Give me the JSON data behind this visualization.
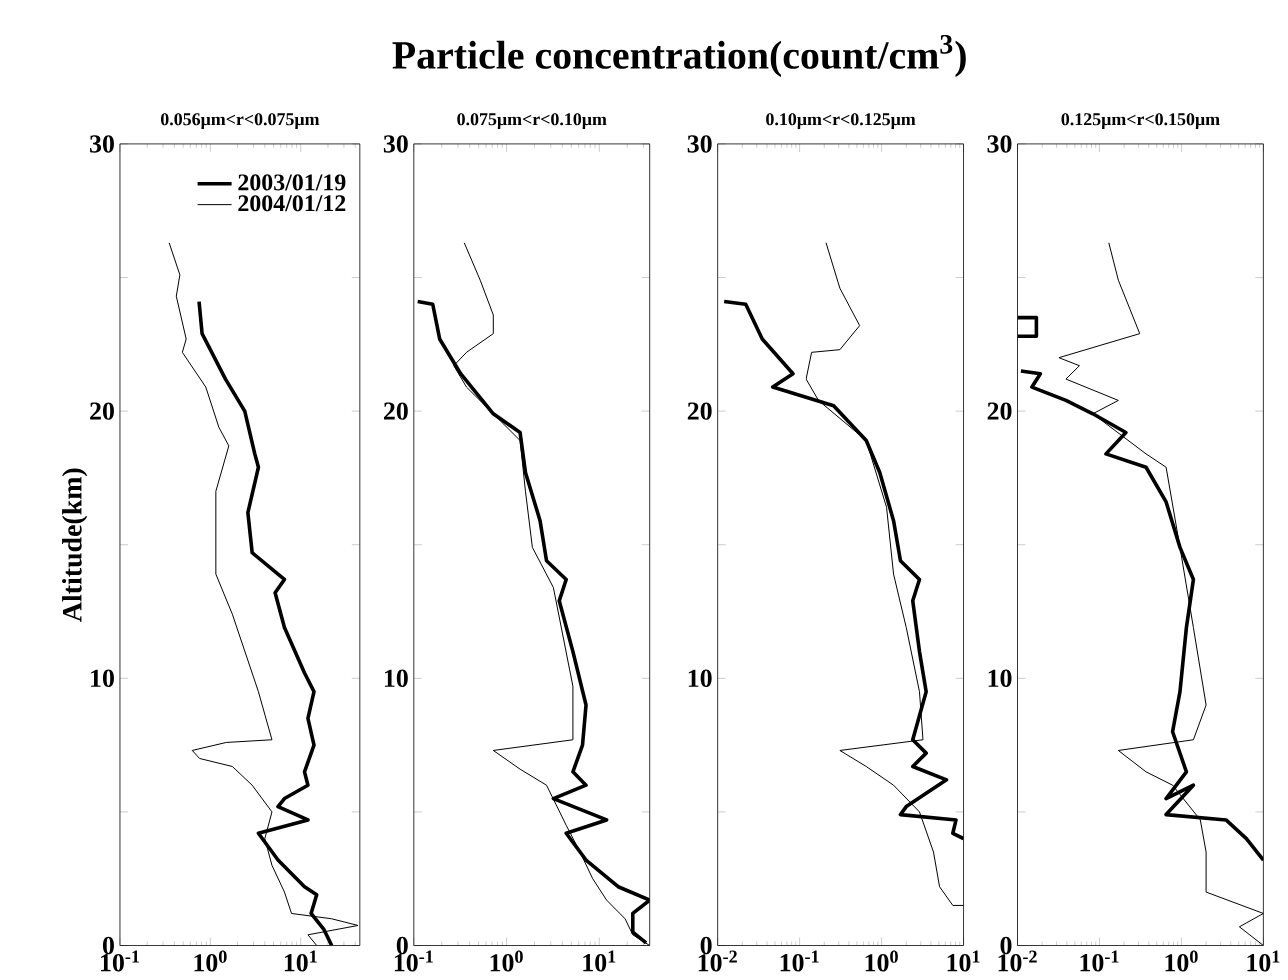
{
  "chart_data": [
    {
      "type": "line",
      "title": "0.056μm<r<0.075μm",
      "ylabel": "Altitude(km)",
      "annotations": [
        "Particle concentration(count/cm$^{3}$)"
      ],
      "log": "x",
      "legend": "top right",
      "xlim": [
        0.1,
        45
      ],
      "xticks": [
        {
          "value": 0.1,
          "label": "10$^{-1}$"
        },
        {
          "value": 1,
          "label": "10$^{0}$"
        },
        {
          "value": 10,
          "label": "10$^{1}$"
        }
      ],
      "ylim": [
        0,
        30
      ],
      "yticks": [
        0,
        {
          "value": 5,
          "label": null
        },
        10,
        {
          "value": 15,
          "label": null
        },
        20,
        {
          "value": 25,
          "label": null
        },
        30
      ],
      "series": [
        {
          "name": "2003/01/19",
          "color": "#000000",
          "x": [
            0.75,
            0.81,
            1.47,
            2.4,
            3.1,
            3.4,
            2.6,
            2.9,
            5.6,
            6.6,
            5.2,
            6.6,
            11,
            14,
            12,
            14,
            11,
            12,
            6.6,
            5.6,
            12,
            3.4,
            5.6,
            11,
            15,
            13,
            18,
            22
          ],
          "values": [
            24.1,
            22.9,
            21.2,
            20.0,
            18.4,
            17.9,
            16.2,
            14.7,
            13.9,
            13.7,
            13.2,
            11.9,
            10.2,
            9.5,
            8.5,
            7.5,
            6.5,
            6.0,
            5.5,
            5.2,
            4.7,
            4.2,
            3.2,
            2.2,
            1.9,
            1.2,
            0.6,
            0
          ]
        },
        {
          "name": "2004/01/12",
          "color": "#000000",
          "x": [
            0.35,
            0.46,
            0.42,
            0.54,
            0.49,
            0.89,
            1.24,
            1.6,
            1.15,
            1.15,
            1.75,
            3.4,
            4.8,
            1.5,
            0.63,
            0.76,
            1.75,
            2.9,
            4.8,
            4.0,
            4.8,
            6.6,
            7.9,
            22,
            43,
            12,
            15
          ],
          "values": [
            26.3,
            25.1,
            24.3,
            22.7,
            22.2,
            20.9,
            19.4,
            18.7,
            17.0,
            13.9,
            12.4,
            9.5,
            7.7,
            7.6,
            7.3,
            7.0,
            6.7,
            6.0,
            5.0,
            4.0,
            3.0,
            2.0,
            1.2,
            1.0,
            0.75,
            0.4,
            0
          ]
        }
      ]
    },
    {
      "type": "line",
      "title": "0.075μm<r<0.10μm",
      "log": "x",
      "xlim": [
        0.1,
        35
      ],
      "xticks": [
        {
          "value": 0.1,
          "label": "10$^{-1}$"
        },
        {
          "value": 1,
          "label": "10$^{0}$"
        },
        {
          "value": 10,
          "label": "10$^{1}$"
        }
      ],
      "ylim": [
        0,
        30
      ],
      "yticks": [
        0,
        {
          "value": 5,
          "label": null
        },
        10,
        {
          "value": 15,
          "label": null
        },
        20,
        {
          "value": 25,
          "label": null
        },
        30
      ],
      "series": [
        {
          "color": "#000000",
          "x": [
            0.11,
            0.16,
            0.19,
            0.32,
            0.72,
            1.4,
            1.6,
            2.3,
            2.7,
            4.4,
            3.7,
            5.2,
            7.2,
            6.6,
            5.2,
            7.2,
            3.2,
            12,
            4.4,
            7.2,
            16,
            35,
            23,
            23,
            32
          ],
          "values": [
            24.1,
            24.0,
            22.7,
            21.4,
            19.9,
            19.2,
            17.7,
            15.9,
            14.4,
            13.7,
            12.9,
            11.0,
            9.0,
            7.5,
            6.5,
            6.0,
            5.5,
            4.7,
            4.2,
            3.2,
            2.2,
            1.7,
            1.2,
            0.5,
            0.1
          ]
        },
        {
          "color": "#000000",
          "x": [
            0.35,
            0.52,
            0.72,
            0.72,
            0.37,
            0.27,
            0.37,
            1.4,
            1.6,
            1.9,
            3.2,
            5.2,
            5.2,
            0.72,
            1.4,
            2.7,
            4.4,
            6.2,
            8.5,
            12,
            19,
            23,
            35
          ],
          "values": [
            26.3,
            24.9,
            23.6,
            22.9,
            22.2,
            21.7,
            20.9,
            18.9,
            17.0,
            14.9,
            13.4,
            9.7,
            7.7,
            7.3,
            6.6,
            6.0,
            4.5,
            3.5,
            2.5,
            1.7,
            1.0,
            0.4,
            0
          ]
        }
      ]
    },
    {
      "type": "line",
      "title": "0.10μm<r<0.125μm",
      "log": "x",
      "xlim": [
        0.01,
        10
      ],
      "xticks": [
        {
          "value": 0.01,
          "label": "10$^{-2}$"
        },
        {
          "value": 0.1,
          "label": "10$^{-1}$"
        },
        {
          "value": 1,
          "label": "10$^{0}$"
        },
        {
          "value": 10,
          "label": "10$^{1}$"
        }
      ],
      "ylim": [
        0,
        30
      ],
      "yticks": [
        0,
        {
          "value": 5,
          "label": null
        },
        10,
        {
          "value": 15,
          "label": null
        },
        20,
        {
          "value": 25,
          "label": null
        },
        30
      ],
      "series": [
        {
          "color": "#000000",
          "x": [
            0.012,
            0.022,
            0.035,
            0.083,
            0.047,
            0.26,
            0.65,
            0.95,
            1.4,
            1.7,
            2.9,
            2.4,
            2.9,
            3.5,
            2.4,
            3.5,
            2.4,
            6.2,
            2.0,
            1.7,
            8.1,
            7.4,
            10
          ],
          "values": [
            24.1,
            24.0,
            22.7,
            21.4,
            20.9,
            20.2,
            18.9,
            17.7,
            15.9,
            14.4,
            13.7,
            12.9,
            11.0,
            9.5,
            7.7,
            7.2,
            6.7,
            6.2,
            5.2,
            4.9,
            4.7,
            4.2,
            4.0
          ]
        },
        {
          "color": "#000000",
          "x": [
            0.21,
            0.31,
            0.54,
            0.31,
            0.14,
            0.12,
            0.17,
            0.65,
            1.15,
            1.4,
            2.0,
            2.9,
            3.2,
            0.31,
            0.65,
            1.4,
            2.9,
            4.3,
            5.1,
            7.4,
            10
          ],
          "values": [
            26.3,
            24.6,
            23.2,
            22.3,
            22.2,
            21.2,
            20.4,
            18.9,
            16.4,
            13.9,
            11.9,
            9.5,
            7.7,
            7.3,
            6.7,
            6.0,
            5.0,
            3.5,
            2.2,
            1.5,
            1.5
          ]
        }
      ]
    },
    {
      "type": "line",
      "title": "0.125μm<r<0.150μm",
      "log": "x",
      "xlim": [
        0.01,
        10
      ],
      "xticks": [
        {
          "value": 0.01,
          "label": "10$^{-2}$"
        },
        {
          "value": 0.1,
          "label": "10$^{-1}$"
        },
        {
          "value": 1,
          "label": "10$^{0}$"
        },
        {
          "value": 10,
          "label": "10$^{1}$"
        }
      ],
      "ylim": [
        0,
        30
      ],
      "yticks": [
        0,
        {
          "value": 5,
          "label": null
        },
        10,
        {
          "value": 15,
          "label": null
        },
        20,
        {
          "value": 25,
          "label": null
        },
        30
      ],
      "series": [
        {
          "color": "#000000",
          "x": [
            0.01,
            0.017,
            0.017,
            0.01,
            null,
            0.011,
            0.019,
            0.015,
            0.039,
            0.083,
            0.21,
            0.12,
            0.37,
            0.65,
            0.96,
            1.4,
            1.15,
            0.96,
            0.78,
            1.15,
            0.65,
            1.4,
            0.65,
            3.5,
            6.2,
            10
          ],
          "values": [
            23.5,
            23.5,
            22.8,
            22.8,
            null,
            21.5,
            21.4,
            20.9,
            20.4,
            19.9,
            19.2,
            18.4,
            17.9,
            16.6,
            14.9,
            13.7,
            11.9,
            9.5,
            8.0,
            6.5,
            5.5,
            6.0,
            4.9,
            4.7,
            4.0,
            3.2
          ]
        },
        {
          "color": "#000000",
          "x": [
            0.13,
            0.17,
            0.31,
            0.032,
            0.057,
            0.039,
            0.17,
            0.083,
            0.37,
            0.65,
            0.96,
            1.4,
            2.0,
            1.4,
            0.17,
            0.37,
            0.78,
            1.7,
            2.0,
            2.0,
            10,
            5.1,
            10
          ],
          "values": [
            26.3,
            24.9,
            22.9,
            22.0,
            21.7,
            21.2,
            20.4,
            19.9,
            18.4,
            17.9,
            14.9,
            11.9,
            9.0,
            7.7,
            7.3,
            6.5,
            6.0,
            4.7,
            3.5,
            2.0,
            1.2,
            0.7,
            0
          ]
        }
      ]
    }
  ]
}
